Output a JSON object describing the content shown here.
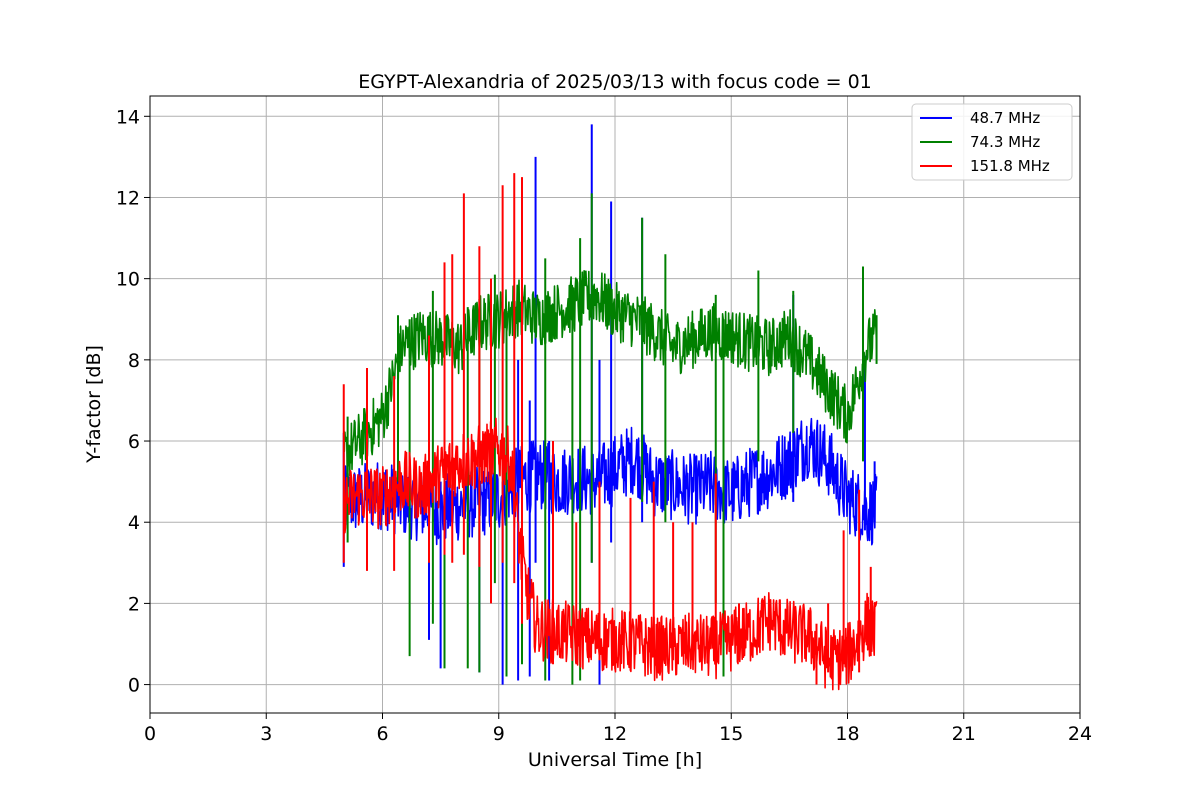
{
  "chart_data": {
    "type": "line",
    "title": "EGYPT-Alexandria of 2025/03/13 with focus code = 01",
    "xlabel": "Universal Time [h]",
    "ylabel": "Y-factor [dB]",
    "xlim": [
      0,
      24
    ],
    "ylim": [
      -0.7,
      14.5
    ],
    "xticks": [
      0,
      3,
      6,
      9,
      12,
      15,
      18,
      21,
      24
    ],
    "xtick_labels": [
      "0",
      "3",
      "6",
      "9",
      "12",
      "15",
      "18",
      "21",
      "24"
    ],
    "yticks": [
      0,
      2,
      4,
      6,
      8,
      10,
      12,
      14
    ],
    "ytick_labels": [
      "0",
      "2",
      "4",
      "6",
      "8",
      "10",
      "12",
      "14"
    ],
    "grid": true,
    "legend_position": "top-right",
    "series": [
      {
        "name": "  48.7 MHz",
        "color": "#0000ff",
        "x": [
          5.0,
          5.5,
          6.0,
          6.5,
          7.0,
          7.5,
          8.0,
          8.5,
          9.0,
          9.5,
          10.0,
          10.5,
          11.0,
          11.5,
          12.0,
          12.5,
          13.0,
          13.5,
          14.0,
          14.5,
          15.0,
          15.5,
          16.0,
          16.5,
          17.0,
          17.5,
          18.0,
          18.5,
          18.75
        ],
        "y": [
          4.5,
          4.6,
          4.7,
          4.5,
          4.4,
          4.3,
          4.4,
          4.5,
          4.6,
          5.0,
          5.2,
          5.0,
          5.1,
          5.0,
          5.3,
          5.6,
          5.0,
          4.9,
          4.8,
          4.9,
          4.7,
          5.0,
          5.2,
          5.5,
          6.0,
          5.5,
          4.6,
          4.3,
          4.3
        ],
        "spikes": [
          {
            "x": 5.0,
            "low": 2.9,
            "high": 6.2
          },
          {
            "x": 7.2,
            "low": 1.1,
            "high": 4.5
          },
          {
            "x": 7.5,
            "low": 0.4,
            "high": 5.0
          },
          {
            "x": 8.5,
            "low": 0.3,
            "high": 5.5
          },
          {
            "x": 9.1,
            "low": 0.0,
            "high": 5.0
          },
          {
            "x": 9.5,
            "low": 0.1,
            "high": 8.0
          },
          {
            "x": 9.8,
            "low": 0.2,
            "high": 7.0
          },
          {
            "x": 9.95,
            "low": 3.0,
            "high": 13.0
          },
          {
            "x": 10.3,
            "low": 0.1,
            "high": 6.0
          },
          {
            "x": 11.4,
            "low": 3.0,
            "high": 13.8
          },
          {
            "x": 11.6,
            "low": 0.0,
            "high": 8.0
          },
          {
            "x": 11.9,
            "low": 3.5,
            "high": 11.9
          },
          {
            "x": 12.7,
            "low": 4.0,
            "high": 11.5
          },
          {
            "x": 14.8,
            "low": 0.3,
            "high": 6.5
          },
          {
            "x": 16.6,
            "low": 4.5,
            "high": 9.6
          },
          {
            "x": 18.45,
            "low": 3.8,
            "high": 8.1
          },
          {
            "x": 18.7,
            "low": 4.0,
            "high": 5.5
          }
        ]
      },
      {
        "name": "  74.3 MHz",
        "color": "#008000",
        "x": [
          5.0,
          5.5,
          6.0,
          6.5,
          7.0,
          7.5,
          8.0,
          8.5,
          9.0,
          9.5,
          10.0,
          10.5,
          11.0,
          11.5,
          12.0,
          12.5,
          13.0,
          13.5,
          14.0,
          14.5,
          15.0,
          15.5,
          16.0,
          16.5,
          17.0,
          17.5,
          18.0,
          18.5,
          18.75
        ],
        "y": [
          5.6,
          6.1,
          6.6,
          8.3,
          8.6,
          8.5,
          8.3,
          8.9,
          9.0,
          9.3,
          9.0,
          9.2,
          9.4,
          9.6,
          9.2,
          9.0,
          8.7,
          8.3,
          8.5,
          8.7,
          8.6,
          8.4,
          8.3,
          8.6,
          8.0,
          7.3,
          6.6,
          8.3,
          8.6
        ],
        "spikes": [
          {
            "x": 5.1,
            "low": 3.5,
            "high": 6.6
          },
          {
            "x": 6.4,
            "low": 5.0,
            "high": 9.1
          },
          {
            "x": 6.7,
            "low": 0.7,
            "high": 9.0
          },
          {
            "x": 7.3,
            "low": 1.5,
            "high": 9.7
          },
          {
            "x": 7.6,
            "low": 0.4,
            "high": 9.0
          },
          {
            "x": 8.2,
            "low": 0.4,
            "high": 9.3
          },
          {
            "x": 8.5,
            "low": 0.3,
            "high": 9.5
          },
          {
            "x": 8.9,
            "low": 2.5,
            "high": 10.1
          },
          {
            "x": 9.2,
            "low": 0.2,
            "high": 9.2
          },
          {
            "x": 9.6,
            "low": 0.5,
            "high": 9.0
          },
          {
            "x": 10.2,
            "low": 0.1,
            "high": 10.5
          },
          {
            "x": 10.9,
            "low": 0.0,
            "high": 9.5
          },
          {
            "x": 11.1,
            "low": 0.1,
            "high": 11.0
          },
          {
            "x": 11.4,
            "low": 3.0,
            "high": 12.1
          },
          {
            "x": 12.7,
            "low": 4.5,
            "high": 11.5
          },
          {
            "x": 13.3,
            "low": 4.0,
            "high": 10.6
          },
          {
            "x": 14.6,
            "low": 2.0,
            "high": 9.6
          },
          {
            "x": 14.8,
            "low": 0.2,
            "high": 9.0
          },
          {
            "x": 15.7,
            "low": 5.5,
            "high": 10.2
          },
          {
            "x": 16.6,
            "low": 6.2,
            "high": 9.7
          },
          {
            "x": 18.4,
            "low": 5.5,
            "high": 10.3
          },
          {
            "x": 18.75,
            "low": 7.9,
            "high": 9.1
          }
        ]
      },
      {
        "name": "151.8 MHz",
        "color": "#ff0000",
        "x": [
          5.0,
          5.5,
          6.0,
          6.5,
          7.0,
          7.5,
          8.0,
          8.5,
          9.0,
          9.3,
          9.6,
          9.8,
          10.0,
          10.5,
          11.0,
          11.5,
          12.0,
          12.5,
          13.0,
          13.5,
          14.0,
          14.5,
          15.0,
          15.5,
          16.0,
          16.5,
          17.0,
          17.5,
          18.0,
          18.5,
          18.75
        ],
        "y": [
          4.5,
          4.7,
          4.6,
          5.0,
          4.8,
          5.2,
          5.5,
          5.6,
          5.8,
          5.5,
          3.0,
          2.0,
          1.4,
          1.3,
          1.2,
          1.1,
          1.1,
          1.0,
          0.9,
          0.9,
          1.0,
          0.9,
          1.1,
          1.3,
          1.6,
          1.3,
          1.2,
          0.6,
          0.7,
          1.5,
          1.3
        ],
        "spikes": [
          {
            "x": 5.0,
            "low": 3.0,
            "high": 7.4
          },
          {
            "x": 5.6,
            "low": 2.8,
            "high": 7.8
          },
          {
            "x": 6.3,
            "low": 2.8,
            "high": 7.6
          },
          {
            "x": 7.2,
            "low": 3.0,
            "high": 8.6
          },
          {
            "x": 7.6,
            "low": 3.2,
            "high": 10.4
          },
          {
            "x": 7.8,
            "low": 3.0,
            "high": 10.6
          },
          {
            "x": 8.1,
            "low": 3.2,
            "high": 12.1
          },
          {
            "x": 8.5,
            "low": 2.9,
            "high": 10.8
          },
          {
            "x": 8.8,
            "low": 2.0,
            "high": 10.0
          },
          {
            "x": 9.1,
            "low": 3.0,
            "high": 12.3
          },
          {
            "x": 9.4,
            "low": 2.5,
            "high": 12.6
          },
          {
            "x": 9.6,
            "low": 1.5,
            "high": 12.5
          },
          {
            "x": 10.4,
            "low": 0.5,
            "high": 6.0
          },
          {
            "x": 11.0,
            "low": 0.5,
            "high": 4.0
          },
          {
            "x": 11.6,
            "low": 0.6,
            "high": 5.0
          },
          {
            "x": 12.4,
            "low": 0.6,
            "high": 4.6
          },
          {
            "x": 13.0,
            "low": 0.7,
            "high": 5.0
          },
          {
            "x": 13.5,
            "low": 0.6,
            "high": 4.0
          },
          {
            "x": 14.0,
            "low": 0.6,
            "high": 4.0
          },
          {
            "x": 14.6,
            "low": 0.5,
            "high": 5.2
          },
          {
            "x": 15.2,
            "low": 0.6,
            "high": 2.0
          },
          {
            "x": 17.2,
            "low": 0.0,
            "high": 1.5
          },
          {
            "x": 17.5,
            "low": 0.3,
            "high": 2.0
          },
          {
            "x": 17.9,
            "low": 0.5,
            "high": 3.8
          },
          {
            "x": 18.3,
            "low": 0.3,
            "high": 4.8
          },
          {
            "x": 18.6,
            "low": 0.7,
            "high": 2.9
          }
        ]
      }
    ]
  }
}
